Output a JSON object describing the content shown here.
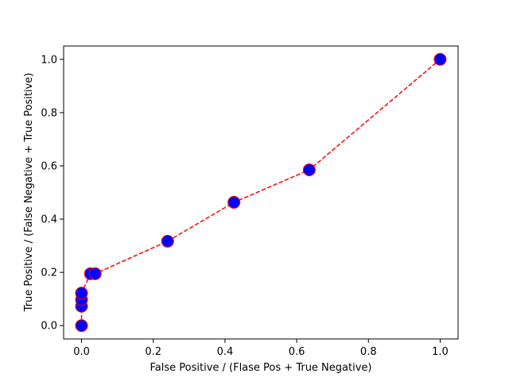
{
  "chart_data": {
    "type": "line",
    "xlabel": "False Positive / (Flase Pos + True Negative)",
    "ylabel": "True Positive / (False Negative + True Positive)",
    "xlim": [
      -0.05,
      1.05
    ],
    "ylim": [
      -0.05,
      1.05
    ],
    "xticks": [
      0.0,
      0.2,
      0.4,
      0.6,
      0.8,
      1.0
    ],
    "xtick_labels": [
      "0.0",
      "0.2",
      "0.4",
      "0.6",
      "0.8",
      "1.0"
    ],
    "yticks": [
      0.0,
      0.2,
      0.4,
      0.6,
      0.8,
      1.0
    ],
    "ytick_labels": [
      "0.0",
      "0.2",
      "0.4",
      "0.6",
      "0.8",
      "1.0"
    ],
    "grid": false,
    "line_style": "dashed",
    "line_color": "#ff0000",
    "marker_face_color": "#0000ff",
    "marker_edge_color": "#ff0000",
    "series": [
      {
        "x": [
          0.0,
          0.0,
          0.0,
          0.0,
          0.025,
          0.038,
          0.24,
          0.425,
          0.635,
          1.0
        ],
        "y": [
          0.0,
          0.073,
          0.097,
          0.122,
          0.195,
          0.195,
          0.317,
          0.463,
          0.585,
          1.0
        ]
      }
    ]
  }
}
